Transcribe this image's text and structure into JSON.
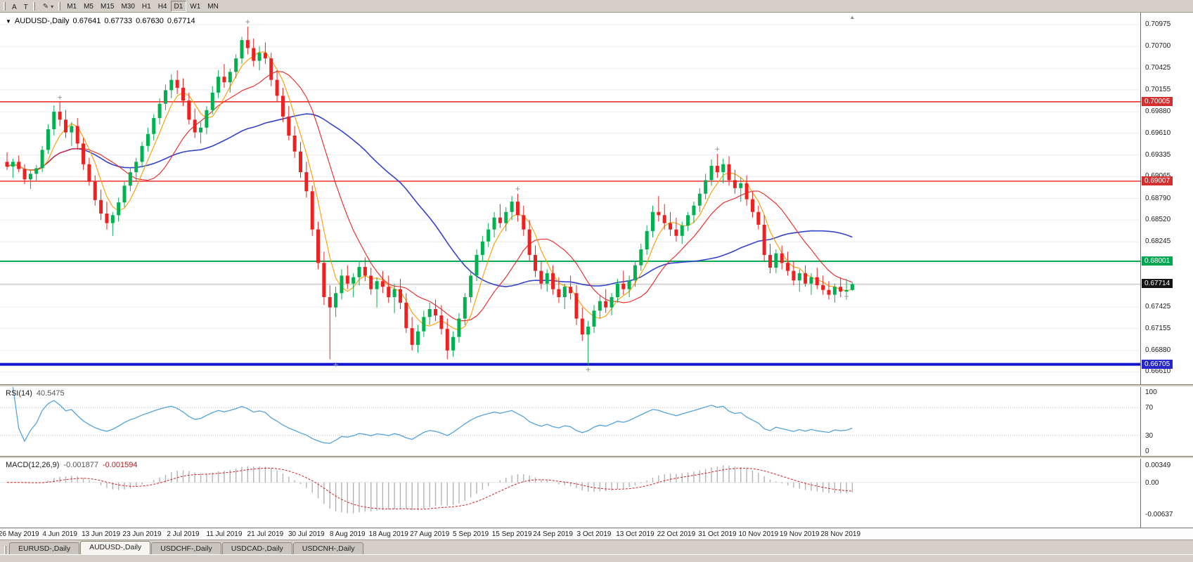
{
  "toolbar": {
    "tool_buttons": [
      {
        "label": "A"
      },
      {
        "label": "T"
      }
    ],
    "draw_tool_icon": "✎",
    "dropdown_icon": "▾",
    "timeframes": [
      {
        "label": "M1",
        "active": false
      },
      {
        "label": "M5",
        "active": false
      },
      {
        "label": "M15",
        "active": false
      },
      {
        "label": "M30",
        "active": false
      },
      {
        "label": "H1",
        "active": false
      },
      {
        "label": "H4",
        "active": false
      },
      {
        "label": "D1",
        "active": true
      },
      {
        "label": "W1",
        "active": false
      },
      {
        "label": "MN",
        "active": false
      }
    ]
  },
  "chart": {
    "title": {
      "dropdown_icon": "▼",
      "symbol": "AUDUSD-,Daily",
      "open": "0.67641",
      "high": "0.67733",
      "low": "0.67630",
      "close": "0.67714"
    },
    "shift_marker_icon": "▲",
    "price_axis": {
      "top_price": 0.71125,
      "bottom_price": 0.66455,
      "labels": [
        "0.70975",
        "0.70700",
        "0.70425",
        "0.70155",
        "0.69880",
        "0.69610",
        "0.69335",
        "0.69065",
        "0.68790",
        "0.68520",
        "0.68245",
        "0.67970",
        "0.67700",
        "0.67425",
        "0.67155",
        "0.66880",
        "0.66610"
      ]
    },
    "hlines": [
      {
        "name": "resistance-line-1",
        "price": 0.70005,
        "label": "0.70005",
        "color": "#ee1c1c",
        "badge_bg": "#d23030",
        "thickness": 1.4
      },
      {
        "name": "resistance-line-2",
        "price": 0.69007,
        "label": "0.69007",
        "color": "#ee1c1c",
        "badge_bg": "#d23030",
        "thickness": 1.4
      },
      {
        "name": "support-line",
        "price": 0.68001,
        "label": "0.68001",
        "color": "#00a651",
        "badge_bg": "#00a651",
        "thickness": 2
      },
      {
        "name": "major-support-line",
        "price": 0.66705,
        "label": "0.66705",
        "color": "#1414cc",
        "badge_bg": "#2626cc",
        "thickness": 4
      }
    ],
    "current_price": {
      "value": 0.67714,
      "label": "0.67714",
      "line_color": "#bdbdbd",
      "badge_bg": "#141414"
    },
    "colors": {
      "up": "#00b14f",
      "down": "#ef2020",
      "ma_fast": "#ff9a00",
      "ma_mid": "#ee2222",
      "ma_slow": "#3344cc",
      "grid": "#ebebeb"
    },
    "ma_periods": {
      "fast": 5,
      "mid": 13,
      "slow": 34
    },
    "candles": [
      [
        0.6925,
        0.6937,
        0.6915,
        0.6919
      ],
      [
        0.6919,
        0.6929,
        0.6905,
        0.6925
      ],
      [
        0.6925,
        0.6933,
        0.6912,
        0.6916
      ],
      [
        0.6916,
        0.6922,
        0.6897,
        0.6903
      ],
      [
        0.6903,
        0.6915,
        0.6891,
        0.691
      ],
      [
        0.691,
        0.6921,
        0.69,
        0.6917
      ],
      [
        0.6917,
        0.6945,
        0.6912,
        0.694
      ],
      [
        0.694,
        0.6972,
        0.6935,
        0.6966
      ],
      [
        0.6966,
        0.6996,
        0.6958,
        0.6988
      ],
      [
        0.6988,
        0.7,
        0.697,
        0.6978
      ],
      [
        0.6978,
        0.699,
        0.6955,
        0.6962
      ],
      [
        0.6962,
        0.6975,
        0.6945,
        0.697
      ],
      [
        0.697,
        0.698,
        0.694,
        0.6948
      ],
      [
        0.6948,
        0.6955,
        0.6915,
        0.6922
      ],
      [
        0.6922,
        0.693,
        0.6895,
        0.69
      ],
      [
        0.69,
        0.6908,
        0.687,
        0.6877
      ],
      [
        0.6877,
        0.689,
        0.6852,
        0.686
      ],
      [
        0.686,
        0.6875,
        0.684,
        0.6848
      ],
      [
        0.6848,
        0.6862,
        0.6832,
        0.6858
      ],
      [
        0.6858,
        0.688,
        0.685,
        0.6874
      ],
      [
        0.6874,
        0.69,
        0.6868,
        0.6895
      ],
      [
        0.6895,
        0.6918,
        0.6888,
        0.6912
      ],
      [
        0.6912,
        0.693,
        0.69,
        0.6925
      ],
      [
        0.6925,
        0.695,
        0.6918,
        0.6945
      ],
      [
        0.6945,
        0.6968,
        0.6938,
        0.696
      ],
      [
        0.696,
        0.6985,
        0.6952,
        0.698
      ],
      [
        0.698,
        0.7005,
        0.6972,
        0.6998
      ],
      [
        0.6998,
        0.7022,
        0.699,
        0.7015
      ],
      [
        0.7015,
        0.7035,
        0.7005,
        0.7028
      ],
      [
        0.7028,
        0.704,
        0.701,
        0.7018
      ],
      [
        0.7018,
        0.703,
        0.6995,
        0.7002
      ],
      [
        0.7002,
        0.7012,
        0.6972,
        0.6978
      ],
      [
        0.6978,
        0.6992,
        0.6955,
        0.6962
      ],
      [
        0.6962,
        0.6975,
        0.6948,
        0.6968
      ],
      [
        0.6968,
        0.6995,
        0.696,
        0.699
      ],
      [
        0.699,
        0.702,
        0.6985,
        0.7012
      ],
      [
        0.7012,
        0.704,
        0.7005,
        0.7032
      ],
      [
        0.7032,
        0.7048,
        0.7018,
        0.7025
      ],
      [
        0.7025,
        0.7042,
        0.7012,
        0.7038
      ],
      [
        0.7038,
        0.706,
        0.703,
        0.7055
      ],
      [
        0.7055,
        0.7082,
        0.7048,
        0.7078
      ],
      [
        0.7078,
        0.7095,
        0.706,
        0.7068
      ],
      [
        0.7068,
        0.708,
        0.7045,
        0.7052
      ],
      [
        0.7052,
        0.707,
        0.704,
        0.7062
      ],
      [
        0.7062,
        0.7075,
        0.7048,
        0.7055
      ],
      [
        0.7055,
        0.7062,
        0.702,
        0.7028
      ],
      [
        0.7028,
        0.704,
        0.7,
        0.7008
      ],
      [
        0.7008,
        0.7018,
        0.6975,
        0.6982
      ],
      [
        0.6982,
        0.6995,
        0.6952,
        0.6958
      ],
      [
        0.6958,
        0.697,
        0.693,
        0.6938
      ],
      [
        0.6938,
        0.695,
        0.6905,
        0.6912
      ],
      [
        0.6912,
        0.6925,
        0.688,
        0.6888
      ],
      [
        0.6888,
        0.6895,
        0.6832,
        0.684
      ],
      [
        0.684,
        0.685,
        0.679,
        0.6798
      ],
      [
        0.6798,
        0.6812,
        0.6745,
        0.6755
      ],
      [
        0.6755,
        0.677,
        0.6677,
        0.6742
      ],
      [
        0.6742,
        0.6768,
        0.673,
        0.676
      ],
      [
        0.676,
        0.679,
        0.6752,
        0.6782
      ],
      [
        0.6782,
        0.6795,
        0.6765,
        0.6772
      ],
      [
        0.6772,
        0.6785,
        0.6755,
        0.678
      ],
      [
        0.678,
        0.68,
        0.677,
        0.6793
      ],
      [
        0.6793,
        0.6805,
        0.6775,
        0.6782
      ],
      [
        0.6782,
        0.6792,
        0.6758,
        0.6765
      ],
      [
        0.6765,
        0.678,
        0.6742,
        0.6775
      ],
      [
        0.6775,
        0.6788,
        0.676,
        0.6768
      ],
      [
        0.6768,
        0.6782,
        0.6748,
        0.6755
      ],
      [
        0.6755,
        0.6772,
        0.6735,
        0.6765
      ],
      [
        0.6765,
        0.6778,
        0.674,
        0.6748
      ],
      [
        0.6748,
        0.676,
        0.671,
        0.6716
      ],
      [
        0.6716,
        0.673,
        0.6688,
        0.6695
      ],
      [
        0.6695,
        0.672,
        0.6685,
        0.6712
      ],
      [
        0.6712,
        0.6738,
        0.6705,
        0.673
      ],
      [
        0.673,
        0.6748,
        0.672,
        0.674
      ],
      [
        0.674,
        0.6752,
        0.6725,
        0.6732
      ],
      [
        0.6732,
        0.6745,
        0.6708,
        0.6715
      ],
      [
        0.6715,
        0.6728,
        0.6677,
        0.6688
      ],
      [
        0.6688,
        0.6712,
        0.668,
        0.6705
      ],
      [
        0.6705,
        0.6735,
        0.6698,
        0.6728
      ],
      [
        0.6728,
        0.676,
        0.672,
        0.6755
      ],
      [
        0.6755,
        0.6788,
        0.6748,
        0.6782
      ],
      [
        0.6782,
        0.6815,
        0.6775,
        0.6808
      ],
      [
        0.6808,
        0.6832,
        0.68,
        0.6825
      ],
      [
        0.6825,
        0.6848,
        0.6818,
        0.684
      ],
      [
        0.684,
        0.6862,
        0.683,
        0.6855
      ],
      [
        0.6855,
        0.6872,
        0.6842,
        0.6848
      ],
      [
        0.6848,
        0.6868,
        0.6838,
        0.6862
      ],
      [
        0.6862,
        0.6882,
        0.6852,
        0.6875
      ],
      [
        0.6875,
        0.6885,
        0.685,
        0.6858
      ],
      [
        0.6858,
        0.687,
        0.6832,
        0.684
      ],
      [
        0.684,
        0.6852,
        0.68,
        0.6808
      ],
      [
        0.6808,
        0.682,
        0.678,
        0.6788
      ],
      [
        0.6788,
        0.68,
        0.6765,
        0.6772
      ],
      [
        0.6772,
        0.679,
        0.6762,
        0.6785
      ],
      [
        0.6785,
        0.6795,
        0.6758,
        0.6765
      ],
      [
        0.6765,
        0.678,
        0.6748,
        0.6755
      ],
      [
        0.6755,
        0.6772,
        0.674,
        0.6768
      ],
      [
        0.6768,
        0.6782,
        0.6752,
        0.676
      ],
      [
        0.676,
        0.677,
        0.672,
        0.6728
      ],
      [
        0.6728,
        0.6742,
        0.67,
        0.6708
      ],
      [
        0.6708,
        0.6725,
        0.667,
        0.6718
      ],
      [
        0.6718,
        0.6745,
        0.671,
        0.6738
      ],
      [
        0.6738,
        0.6758,
        0.6728,
        0.675
      ],
      [
        0.675,
        0.6765,
        0.6735,
        0.6742
      ],
      [
        0.6742,
        0.676,
        0.6732,
        0.6755
      ],
      [
        0.6755,
        0.6778,
        0.6748,
        0.6772
      ],
      [
        0.6772,
        0.6788,
        0.6758,
        0.6765
      ],
      [
        0.6765,
        0.6782,
        0.6755,
        0.6776
      ],
      [
        0.6776,
        0.68,
        0.6768,
        0.6795
      ],
      [
        0.6795,
        0.6822,
        0.6788,
        0.6815
      ],
      [
        0.6815,
        0.6845,
        0.6808,
        0.6838
      ],
      [
        0.6838,
        0.687,
        0.683,
        0.6862
      ],
      [
        0.6862,
        0.6882,
        0.685,
        0.6858
      ],
      [
        0.6858,
        0.6872,
        0.684,
        0.6848
      ],
      [
        0.6848,
        0.6862,
        0.6832,
        0.684
      ],
      [
        0.684,
        0.6855,
        0.6825,
        0.6832
      ],
      [
        0.6832,
        0.685,
        0.6822,
        0.6845
      ],
      [
        0.6845,
        0.6862,
        0.6838,
        0.6858
      ],
      [
        0.6858,
        0.6875,
        0.6848,
        0.687
      ],
      [
        0.687,
        0.6892,
        0.6862,
        0.6885
      ],
      [
        0.6885,
        0.691,
        0.6878,
        0.6902
      ],
      [
        0.6902,
        0.6928,
        0.6895,
        0.692
      ],
      [
        0.692,
        0.6935,
        0.6905,
        0.6912
      ],
      [
        0.6912,
        0.6929,
        0.6898,
        0.6922
      ],
      [
        0.6922,
        0.6932,
        0.6895,
        0.6902
      ],
      [
        0.6902,
        0.6915,
        0.6885,
        0.6892
      ],
      [
        0.6892,
        0.6905,
        0.6875,
        0.6898
      ],
      [
        0.6898,
        0.6908,
        0.687,
        0.6878
      ],
      [
        0.6878,
        0.6888,
        0.6855,
        0.6862
      ],
      [
        0.6862,
        0.687,
        0.684,
        0.6846
      ],
      [
        0.6846,
        0.6858,
        0.68,
        0.6808
      ],
      [
        0.6808,
        0.6822,
        0.6785,
        0.6792
      ],
      [
        0.6792,
        0.6815,
        0.6785,
        0.681
      ],
      [
        0.681,
        0.682,
        0.679,
        0.6798
      ],
      [
        0.6798,
        0.6812,
        0.6782,
        0.6788
      ],
      [
        0.6788,
        0.68,
        0.677,
        0.6776
      ],
      [
        0.6776,
        0.679,
        0.6762,
        0.6785
      ],
      [
        0.6785,
        0.6795,
        0.6768,
        0.6772
      ],
      [
        0.6772,
        0.6785,
        0.6758,
        0.678
      ],
      [
        0.678,
        0.6792,
        0.6765,
        0.677
      ],
      [
        0.677,
        0.6782,
        0.6758,
        0.6764
      ],
      [
        0.6764,
        0.6775,
        0.6752,
        0.6758
      ],
      [
        0.6758,
        0.6772,
        0.6748,
        0.6768
      ],
      [
        0.6768,
        0.678,
        0.6755,
        0.6762
      ],
      [
        0.6762,
        0.6778,
        0.6752,
        0.6764
      ],
      [
        0.67641,
        0.67733,
        0.6763,
        0.67714
      ]
    ],
    "markers": [
      {
        "candle": 9,
        "price": 0.7006
      },
      {
        "candle": 41,
        "price": 0.7101
      },
      {
        "candle": 56,
        "price": 0.667
      },
      {
        "candle": 87,
        "price": 0.6891
      },
      {
        "candle": 99,
        "price": 0.6664
      },
      {
        "candle": 121,
        "price": 0.6941
      },
      {
        "candle": 143,
        "price": 0.6756
      }
    ],
    "x_axis": {
      "labels": [
        {
          "text": "26 May 2019",
          "candle": 2
        },
        {
          "text": "4 Jun 2019",
          "candle": 9
        },
        {
          "text": "13 Jun 2019",
          "candle": 16
        },
        {
          "text": "23 Jun 2019",
          "candle": 23
        },
        {
          "text": "2 Jul 2019",
          "candle": 30
        },
        {
          "text": "11 Jul 2019",
          "candle": 37
        },
        {
          "text": "21 Jul 2019",
          "candle": 44
        },
        {
          "text": "30 Jul 2019",
          "candle": 51
        },
        {
          "text": "8 Aug 2019",
          "candle": 58
        },
        {
          "text": "18 Aug 2019",
          "candle": 65
        },
        {
          "text": "27 Aug 2019",
          "candle": 72
        },
        {
          "text": "5 Sep 2019",
          "candle": 79
        },
        {
          "text": "15 Sep 2019",
          "candle": 86
        },
        {
          "text": "24 Sep 2019",
          "candle": 93
        },
        {
          "text": "3 Oct 2019",
          "candle": 100
        },
        {
          "text": "13 Oct 2019",
          "candle": 107
        },
        {
          "text": "22 Oct 2019",
          "candle": 114
        },
        {
          "text": "31 Oct 2019",
          "candle": 121
        },
        {
          "text": "10 Nov 2019",
          "candle": 128
        },
        {
          "text": "19 Nov 2019",
          "candle": 135
        },
        {
          "text": "28 Nov 2019",
          "candle": 142
        }
      ]
    }
  },
  "indicators": {
    "rsi": {
      "name": "RSI(14)",
      "value": "40.5475",
      "period": 14,
      "levels": [
        70,
        30
      ],
      "axis_labels": [
        "100",
        "70",
        "30",
        "0"
      ],
      "axis_values": [
        100,
        70,
        30,
        0
      ],
      "line_color": "#55a3dd",
      "level_color": "#bcbcbc"
    },
    "macd": {
      "name": "MACD(12,26,9)",
      "value_main": "-0.001877",
      "value_signal": "-0.001594",
      "fast": 12,
      "slow": 26,
      "signal": 9,
      "axis_labels": [
        "0.00349",
        "0.00",
        "-0.00637"
      ],
      "axis_values": [
        0.00349,
        0,
        -0.00637
      ],
      "histogram_color": "#b4b4b4",
      "signal_color": "#d42020",
      "zero_color": "#e6e6e6"
    }
  },
  "tabs": [
    {
      "label": "EURUSD-,Daily",
      "active": false
    },
    {
      "label": "AUDUSD-,Daily",
      "active": true
    },
    {
      "label": "USDCHF-,Daily",
      "active": false
    },
    {
      "label": "USDCAD-,Daily",
      "active": false
    },
    {
      "label": "USDCNH-,Daily",
      "active": false
    }
  ]
}
